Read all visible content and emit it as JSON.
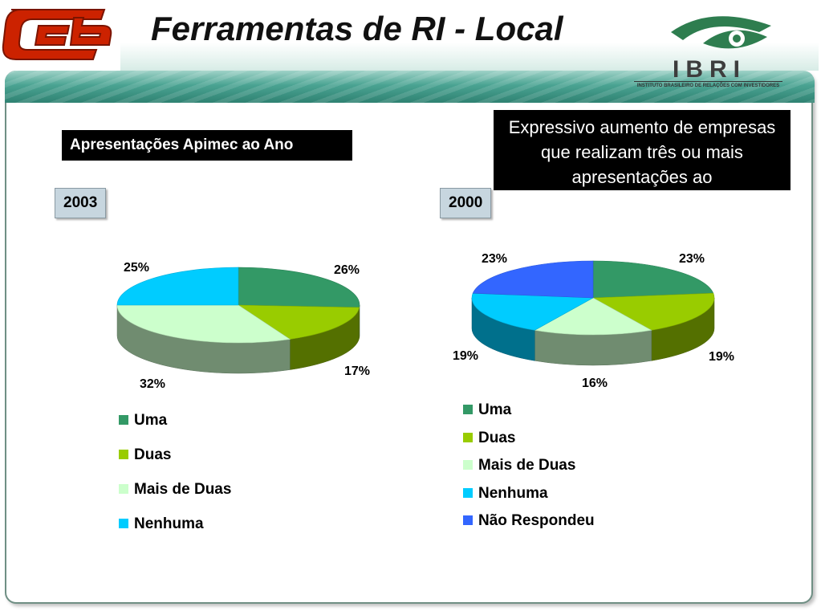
{
  "header": {
    "title": "Ferramentas de RI - Local",
    "logo_right_word": "IBRI",
    "logo_right_subtitle": "Instituto Brasileiro de Relações com Investidores"
  },
  "section_label": "Apresentações Apimec ao Ano",
  "callout": "Expressivo aumento de empresas que realizam três ou mais apresentações ao",
  "colors": {
    "uma": "#339966",
    "duas": "#99cc00",
    "mais_de_duas": "#ccffcc",
    "nenhuma": "#00ccff",
    "nao_respondeu": "#3366ff",
    "header_teal": "#2f8272",
    "logo_red": "#cc2200"
  },
  "chart_data": [
    {
      "type": "pie",
      "title": "2003",
      "categories": [
        "Uma",
        "Duas",
        "Mais de Duas",
        "Nenhuma"
      ],
      "values": [
        26,
        17,
        32,
        25
      ],
      "labels": [
        "26%",
        "17%",
        "32%",
        "25%"
      ],
      "legend": [
        "Uma",
        "Duas",
        "Mais de Duas",
        "Nenhuma"
      ],
      "legend_position": "bottom-left"
    },
    {
      "type": "pie",
      "title": "2000",
      "categories": [
        "Uma",
        "Duas",
        "Mais de Duas",
        "Nenhuma",
        "Não Respondeu"
      ],
      "values": [
        23,
        19,
        16,
        19,
        23
      ],
      "labels": [
        "23%",
        "19%",
        "16%",
        "19%",
        "23%"
      ],
      "legend": [
        "Uma",
        "Duas",
        "Mais de Duas",
        "Nenhuma",
        "Não Respondeu"
      ],
      "legend_position": "bottom-left"
    }
  ]
}
